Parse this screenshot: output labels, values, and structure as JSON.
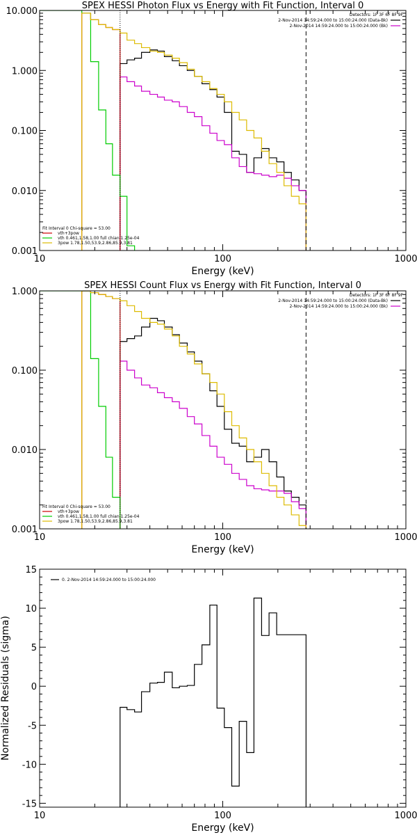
{
  "chart_data": [
    {
      "type": "line",
      "title": "SPEX HESSI Photon Flux vs Energy with Fit Function, Interval 0",
      "xlabel": "Energy (keV)",
      "ylabel": "",
      "xscale": "log",
      "yscale": "log",
      "xlim": [
        10,
        1000
      ],
      "ylim": [
        0.001,
        10
      ],
      "xticks": [
        "10",
        "100",
        "1000"
      ],
      "yticks": [
        "0.001",
        "0.010",
        "0.100",
        "1.000",
        "10.000"
      ],
      "vlines": [
        {
          "x": 27.5,
          "style": "dotted"
        },
        {
          "x": 285,
          "style": "dashed"
        }
      ],
      "legend_top_right": {
        "title": "Detectors: 1F 3F 6F 8F 9F",
        "entries": [
          {
            "label": "2-Nov-2014 14:59:24.000 to 15:00:24.000 (Data-Bk)",
            "color": "#000000"
          },
          {
            "label": "2-Nov-2014 14:59:24.000 to 15:00:24.000 (Bk)",
            "color": "#cc00cc"
          }
        ]
      },
      "legend_bottom_left": {
        "title": "Fit Interval 0   Chi-square = 53.00",
        "entries": [
          {
            "label": "vth+3pow",
            "color": "#cc0000"
          },
          {
            "label": "vth 0.461,1.58,1.00  full chian 1.25e-04",
            "color": "#00cc00"
          },
          {
            "label": "3pow 1.78,1.50,53.9,2.86,85.9,3.81",
            "color": "#ddbb00"
          }
        ]
      },
      "series": [
        {
          "name": "Data-Bk",
          "color": "#000000",
          "edges": [
            27.5,
            30,
            33,
            36,
            40,
            44,
            48,
            53,
            58,
            64,
            70,
            77,
            85,
            93,
            102,
            112,
            123,
            135,
            148,
            163,
            179,
            197,
            216,
            237,
            261,
            285
          ],
          "values": [
            1.3,
            1.5,
            1.6,
            2.0,
            2.2,
            2.1,
            1.7,
            1.45,
            1.2,
            1.0,
            0.8,
            0.6,
            0.48,
            0.36,
            0.2,
            0.045,
            0.04,
            0.02,
            0.035,
            0.05,
            0.035,
            0.03,
            0.02,
            0.015,
            0.01
          ]
        },
        {
          "name": "Bk",
          "color": "#cc00cc",
          "edges": [
            27.5,
            30,
            33,
            36,
            40,
            44,
            48,
            53,
            58,
            64,
            70,
            77,
            85,
            93,
            102,
            112,
            123,
            135,
            148,
            163,
            179,
            197,
            216,
            237,
            261,
            285
          ],
          "values": [
            0.78,
            0.65,
            0.55,
            0.45,
            0.4,
            0.36,
            0.32,
            0.3,
            0.25,
            0.2,
            0.17,
            0.12,
            0.09,
            0.068,
            0.058,
            0.035,
            0.025,
            0.02,
            0.019,
            0.018,
            0.017,
            0.018,
            0.016,
            0.012,
            0.01
          ]
        },
        {
          "name": "vth+3pow",
          "color": "#cc0000",
          "edges": [
            17,
            19,
            21,
            23,
            25,
            27.5
          ],
          "values": [
            9.0,
            7.0,
            5.8,
            5.2,
            4.8
          ]
        },
        {
          "name": "vth",
          "color": "#00cc00",
          "edges": [
            10,
            15.5,
            17,
            19,
            21,
            23,
            25,
            27.5,
            30,
            33
          ],
          "values": [
            10,
            10,
            9.0,
            1.4,
            0.22,
            0.06,
            0.018,
            0.008,
            0.0012
          ]
        },
        {
          "name": "3pow",
          "color": "#ddbb00",
          "edges": [
            17,
            19,
            21,
            23,
            25,
            27.5,
            30,
            33,
            36,
            40,
            44,
            48,
            53,
            58,
            64,
            70,
            77,
            85,
            93,
            102,
            112,
            123,
            135,
            148,
            163,
            179,
            197,
            216,
            237,
            261,
            285
          ],
          "values": [
            9.0,
            7.0,
            5.8,
            5.2,
            4.8,
            4.2,
            3.2,
            2.8,
            2.4,
            2.1,
            2.0,
            1.8,
            1.6,
            1.35,
            1.05,
            0.8,
            0.65,
            0.5,
            0.4,
            0.3,
            0.2,
            0.15,
            0.1,
            0.075,
            0.045,
            0.028,
            0.02,
            0.012,
            0.008,
            0.006
          ]
        }
      ]
    },
    {
      "type": "line",
      "title": "SPEX HESSI Count Flux vs Energy with Fit Function, Interval 0",
      "xlabel": "Energy (keV)",
      "ylabel": "",
      "xscale": "log",
      "yscale": "log",
      "xlim": [
        10,
        1000
      ],
      "ylim": [
        0.001,
        1
      ],
      "xticks": [
        "10",
        "100",
        "1000"
      ],
      "yticks": [
        "0.001",
        "0.010",
        "0.100",
        "1.000"
      ],
      "vlines": [
        {
          "x": 27.5,
          "style": "dotted"
        },
        {
          "x": 285,
          "style": "dashed"
        }
      ],
      "legend_top_right": {
        "title": "Detectors: 1F 3F 6F 8F 9F",
        "entries": [
          {
            "label": "2-Nov-2014 14:59:24.000 to 15:00:24.000 (Data-Bk)",
            "color": "#000000"
          },
          {
            "label": "2-Nov-2014 14:59:24.000 to 15:00:24.000 (Bk)",
            "color": "#cc00cc"
          }
        ]
      },
      "legend_bottom_left": {
        "title": "Fit Interval 0   Chi-square = 53.00",
        "entries": [
          {
            "label": "vth+3pow",
            "color": "#cc0000"
          },
          {
            "label": "vth 0.461,1.58,1.00  full chian 1.25e-04",
            "color": "#00cc00"
          },
          {
            "label": "3pow 1.78,1.50,53.9,2.86,85.9,3.81",
            "color": "#ddbb00"
          }
        ]
      },
      "series": [
        {
          "name": "Data-Bk",
          "color": "#000000",
          "edges": [
            27.5,
            30,
            33,
            36,
            40,
            44,
            48,
            53,
            58,
            64,
            70,
            77,
            85,
            93,
            102,
            112,
            123,
            135,
            148,
            163,
            179,
            197,
            216,
            237,
            261,
            285
          ],
          "values": [
            0.23,
            0.25,
            0.27,
            0.35,
            0.45,
            0.42,
            0.35,
            0.28,
            0.22,
            0.17,
            0.13,
            0.09,
            0.055,
            0.035,
            0.018,
            0.012,
            0.011,
            0.007,
            0.008,
            0.01,
            0.007,
            0.0045,
            0.003,
            0.0025,
            0.002
          ]
        },
        {
          "name": "Bk",
          "color": "#cc00cc",
          "edges": [
            27.5,
            30,
            33,
            36,
            40,
            44,
            48,
            53,
            58,
            64,
            70,
            77,
            85,
            93,
            102,
            112,
            123,
            135,
            148,
            163,
            179,
            197,
            216,
            237,
            261,
            285
          ],
          "values": [
            0.13,
            0.1,
            0.08,
            0.065,
            0.06,
            0.052,
            0.045,
            0.04,
            0.033,
            0.026,
            0.021,
            0.015,
            0.011,
            0.008,
            0.0065,
            0.005,
            0.0042,
            0.0035,
            0.0032,
            0.0031,
            0.003,
            0.003,
            0.0028,
            0.0022,
            0.0018
          ]
        },
        {
          "name": "vth+3pow",
          "color": "#cc0000",
          "edges": [
            17,
            19,
            21,
            23,
            25,
            27.5
          ],
          "values": [
            1.0,
            0.95,
            0.9,
            0.85,
            0.8
          ]
        },
        {
          "name": "vth",
          "color": "#00cc00",
          "edges": [
            10,
            15.5,
            17,
            19,
            21,
            23,
            25,
            27.5
          ],
          "values": [
            1,
            1,
            1,
            0.14,
            0.035,
            0.008,
            0.0025
          ]
        },
        {
          "name": "3pow",
          "color": "#ddbb00",
          "edges": [
            17,
            19,
            21,
            23,
            25,
            27.5,
            30,
            33,
            36,
            40,
            44,
            48,
            53,
            58,
            64,
            70,
            77,
            85,
            93,
            102,
            112,
            123,
            135,
            148,
            163,
            179,
            197,
            216,
            237,
            261,
            285
          ],
          "values": [
            1.0,
            0.95,
            0.9,
            0.85,
            0.8,
            0.75,
            0.65,
            0.55,
            0.45,
            0.4,
            0.38,
            0.33,
            0.27,
            0.2,
            0.16,
            0.12,
            0.09,
            0.07,
            0.05,
            0.03,
            0.02,
            0.014,
            0.01,
            0.007,
            0.005,
            0.0035,
            0.0025,
            0.002,
            0.0015,
            0.0011
          ]
        }
      ]
    },
    {
      "type": "line",
      "title": "",
      "xlabel": "Energy (keV)",
      "ylabel": "Normalized Residuals (sigma)",
      "xscale": "log",
      "yscale": "linear",
      "xlim": [
        10,
        1000
      ],
      "ylim": [
        -15.5,
        15
      ],
      "xticks": [
        "10",
        "100",
        "1000"
      ],
      "yticks": [
        "-15",
        "-10",
        "-5",
        "0",
        "5",
        "10",
        "15"
      ],
      "legend_top_left": {
        "entries": [
          {
            "label": "0.  2-Nov-2014 14:59:24.000 to 15:00:24.000",
            "color": "#000000"
          }
        ]
      },
      "series": [
        {
          "name": "0.  2-Nov-2014 14:59:24.000 to 15:00:24.000",
          "color": "#000000",
          "edges": [
            27.5,
            30,
            33,
            36,
            40,
            44,
            48,
            53,
            58,
            64,
            70,
            77,
            85,
            93,
            102,
            112,
            123,
            135,
            148,
            163,
            179,
            197,
            216,
            237,
            261,
            285
          ],
          "values": [
            -2.7,
            -3.0,
            -3.3,
            -0.7,
            0.4,
            0.5,
            1.8,
            -0.2,
            0.0,
            0.1,
            2.8,
            5.3,
            10.4,
            -2.8,
            -5.3,
            -12.8,
            -4.5,
            -8.5,
            11.3,
            6.5,
            9.4,
            6.6,
            6.6,
            6.6,
            6.6
          ]
        }
      ]
    }
  ]
}
